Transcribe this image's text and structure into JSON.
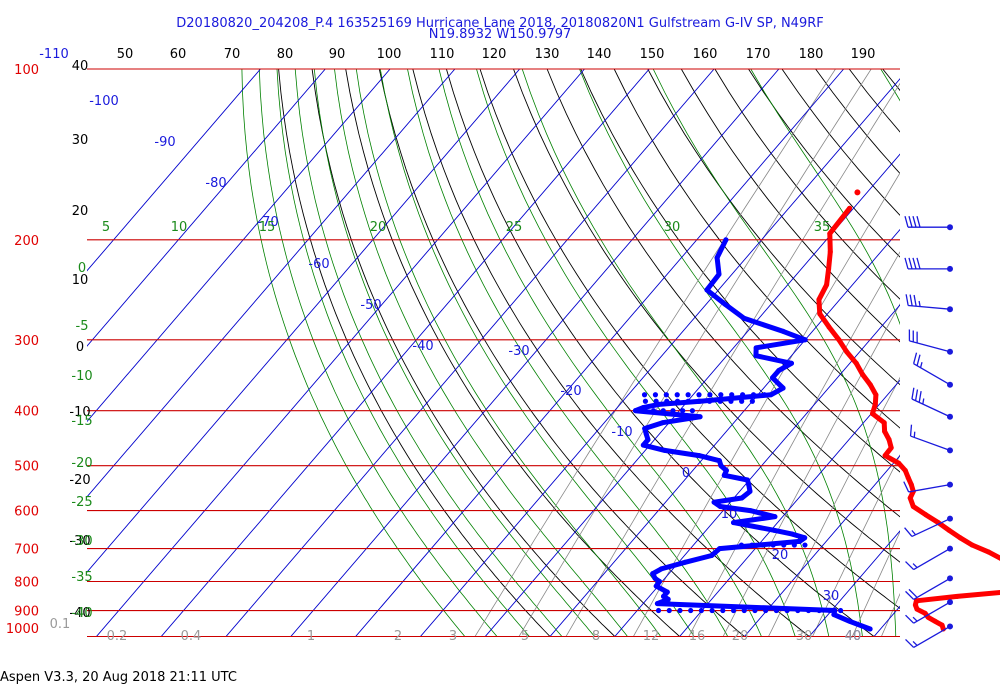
{
  "header": {
    "line1": "D20180820_204208_P.4 163525169 Hurricane Lane 2018, 20180820N1 Gulfstream G-IV SP, N49RF",
    "line2": "N19.8932 W150.9797"
  },
  "footer": "Aspen V3.3, 20 Aug 2018  21:11 UTC",
  "colors": {
    "temperature": "#ff0000",
    "dewpoint": "#0000ff",
    "isobars": "#cc0000",
    "isotherms": "#0000cc",
    "dry_adiabats": "#000000",
    "moist_adiabats": "#008000",
    "mixing_ratio": "#888888"
  },
  "chart_data": {
    "type": "line",
    "title": "",
    "xlabel": "",
    "ylabel": "",
    "top_axis_F": [
      "-110",
      "50",
      "60",
      "70",
      "80",
      "90",
      "100",
      "110",
      "120",
      "130",
      "140",
      "150",
      "160",
      "170",
      "180",
      "190"
    ],
    "pressure_labels": [
      "100",
      "200",
      "300",
      "400",
      "500",
      "600",
      "700",
      "800",
      "900",
      "1000"
    ],
    "left_temp_labels": [
      "40",
      "30",
      "20",
      "10",
      "0",
      "-10",
      "-20",
      "-30",
      "-40"
    ],
    "isotherm_labels_C": [
      "-100",
      "-90",
      "-80",
      "-70",
      "-60",
      "-50",
      "-40",
      "-30",
      "-20",
      "-10",
      "0",
      "10",
      "20",
      "30",
      "40"
    ],
    "moist_adiabat_labels": [
      "5",
      "10",
      "15",
      "20",
      "25",
      "30",
      "35"
    ],
    "moist_left_labels": [
      "0",
      "-5",
      "-10",
      "-15",
      "-20",
      "-25",
      "-30",
      "-35",
      "-40"
    ],
    "mixing_ratio_labels": [
      "0.1",
      "0.2",
      "0.4",
      "1",
      "2",
      "3",
      "5",
      "8",
      "12",
      "16",
      "20",
      "30",
      "40"
    ],
    "series": [
      {
        "name": "",
        "variable": "temperature",
        "points": [
          [
            176,
            -40.6
          ],
          [
            195,
            -40.3
          ],
          [
            210,
            -37.8
          ],
          [
            225,
            -35.8
          ],
          [
            240,
            -34.0
          ],
          [
            255,
            -33.2
          ],
          [
            270,
            -31.2
          ],
          [
            285,
            -28.0
          ],
          [
            300,
            -24.8
          ],
          [
            315,
            -22.0
          ],
          [
            330,
            -19.0
          ],
          [
            345,
            -16.6
          ],
          [
            360,
            -14.0
          ],
          [
            375,
            -11.8
          ],
          [
            390,
            -10.6
          ],
          [
            405,
            -9.8
          ],
          [
            420,
            -6.8
          ],
          [
            435,
            -5.6
          ],
          [
            450,
            -3.8
          ],
          [
            465,
            -2.4
          ],
          [
            480,
            -2.3
          ],
          [
            495,
            0.8
          ],
          [
            510,
            2.8
          ],
          [
            525,
            4.2
          ],
          [
            540,
            5.6
          ],
          [
            555,
            6.8
          ],
          [
            570,
            7.2
          ],
          [
            590,
            8.8
          ],
          [
            610,
            11.8
          ],
          [
            630,
            14.8
          ],
          [
            650,
            17.5
          ],
          [
            670,
            20.2
          ],
          [
            690,
            23.0
          ],
          [
            710,
            26.5
          ],
          [
            730,
            29.4
          ],
          [
            750,
            31.2
          ],
          [
            770,
            33.6
          ],
          [
            790,
            35.0
          ],
          [
            805,
            36.4
          ],
          [
            820,
            36.3
          ],
          [
            835,
            34.2
          ],
          [
            850,
            27.5
          ],
          [
            865,
            21.8
          ],
          [
            880,
            22.2
          ],
          [
            895,
            23.0
          ],
          [
            910,
            24.8
          ],
          [
            925,
            25.8
          ],
          [
            940,
            27.4
          ],
          [
            955,
            29.0
          ],
          [
            970,
            29.7
          ]
        ]
      },
      {
        "name": "",
        "variable": "dewpoint",
        "points": [
          [
            200,
            -55.5
          ],
          [
            215,
            -54.5
          ],
          [
            230,
            -52.0
          ],
          [
            245,
            -51.8
          ],
          [
            260,
            -47.0
          ],
          [
            275,
            -42.3
          ],
          [
            290,
            -34.5
          ],
          [
            300,
            -30.0
          ],
          [
            310,
            -36.5
          ],
          [
            320,
            -35.5
          ],
          [
            330,
            -29.0
          ],
          [
            340,
            -30.0
          ],
          [
            350,
            -30.0
          ],
          [
            365,
            -27.0
          ],
          [
            375,
            -28.0
          ],
          [
            385,
            -38.0
          ],
          [
            390,
            -44.0
          ],
          [
            395,
            -46.0
          ],
          [
            400,
            -46.8
          ],
          [
            410,
            -36.0
          ],
          [
            420,
            -41.0
          ],
          [
            430,
            -43.0
          ],
          [
            440,
            -42.0
          ],
          [
            450,
            -41.0
          ],
          [
            460,
            -41.0
          ],
          [
            470,
            -37.0
          ],
          [
            480,
            -31.0
          ],
          [
            490,
            -27.2
          ],
          [
            500,
            -26.3
          ],
          [
            510,
            -24.8
          ],
          [
            520,
            -24.5
          ],
          [
            530,
            -20.3
          ],
          [
            540,
            -19.5
          ],
          [
            555,
            -18.4
          ],
          [
            570,
            -18.8
          ],
          [
            580,
            -22.5
          ],
          [
            590,
            -21.0
          ],
          [
            600,
            -15.8
          ],
          [
            615,
            -11.2
          ],
          [
            630,
            -16.8
          ],
          [
            650,
            -9.5
          ],
          [
            660,
            -6.2
          ],
          [
            670,
            -3.8
          ],
          [
            680,
            -4.1
          ],
          [
            700,
            -15.5
          ],
          [
            720,
            -15.8
          ],
          [
            740,
            -19.0
          ],
          [
            760,
            -21.8
          ],
          [
            775,
            -22.5
          ],
          [
            790,
            -21.5
          ],
          [
            800,
            -20.4
          ],
          [
            815,
            -20.3
          ],
          [
            835,
            -17.8
          ],
          [
            850,
            -17.8
          ],
          [
            860,
            -16.7
          ],
          [
            875,
            -17.8
          ],
          [
            900,
            10.5
          ],
          [
            915,
            10.9
          ],
          [
            940,
            14.2
          ],
          [
            970,
            18.4
          ]
        ]
      }
    ],
    "dewpoint_dotted_segments": [
      {
        "p": 375,
        "t1": -47.5,
        "t2": -29.0
      },
      {
        "p": 385,
        "t1": -46.5,
        "t2": -30.0
      },
      {
        "p": 400,
        "t1": -44.0,
        "t2": -38.0
      },
      {
        "p": 690,
        "t1": -12.6,
        "t2": -2.8
      },
      {
        "p": 900,
        "t1": -16.7,
        "t2": 11.4
      }
    ],
    "temperature_outlier": {
      "p": 165,
      "t": -41.5
    },
    "wind_barbs": [
      {
        "p": 190,
        "dir": 270,
        "spd": 40
      },
      {
        "p": 225,
        "dir": 270,
        "spd": 40
      },
      {
        "p": 265,
        "dir": 275,
        "spd": 35
      },
      {
        "p": 315,
        "dir": 285,
        "spd": 30
      },
      {
        "p": 360,
        "dir": 300,
        "spd": 25
      },
      {
        "p": 410,
        "dir": 295,
        "spd": 35
      },
      {
        "p": 470,
        "dir": 290,
        "spd": 15
      },
      {
        "p": 540,
        "dir": 260,
        "spd": 10
      },
      {
        "p": 620,
        "dir": 245,
        "spd": 15
      },
      {
        "p": 700,
        "dir": 240,
        "spd": 15
      },
      {
        "p": 790,
        "dir": 240,
        "spd": 20
      },
      {
        "p": 870,
        "dir": 240,
        "spd": 15
      },
      {
        "p": 960,
        "dir": 240,
        "spd": 15
      }
    ]
  }
}
